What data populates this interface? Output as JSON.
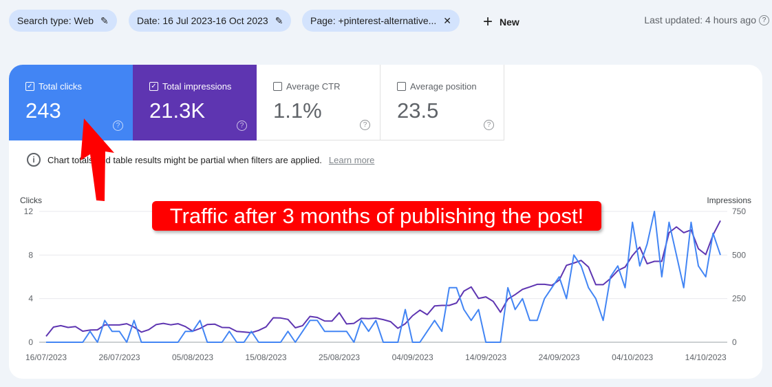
{
  "filters": [
    {
      "label": "Search type: Web",
      "icon": "pencil-icon"
    },
    {
      "label": "Date: 16 Jul 2023-16 Oct 2023",
      "icon": "pencil-icon"
    },
    {
      "label": "Page: +pinterest-alternative...",
      "icon": "close-icon"
    }
  ],
  "new_label": "New",
  "last_updated": "Last updated: 4 hours ago",
  "metrics": [
    {
      "label": "Total clicks",
      "value": "243",
      "checked": true,
      "color": "#4285f4"
    },
    {
      "label": "Total impressions",
      "value": "21.3K",
      "checked": true,
      "color": "#5e35b1"
    },
    {
      "label": "Average CTR",
      "value": "1.1%",
      "checked": false
    },
    {
      "label": "Average position",
      "value": "23.5",
      "checked": false
    }
  ],
  "info_text": "Chart totals and table results might be partial when filters are applied.",
  "learn_more": "Learn more",
  "annotation": "Traffic after 3 months of publishing the post!",
  "chart_data": {
    "type": "line",
    "x_start": "16/07/2023",
    "x_end": "16/10/2023",
    "x_tick_labels": [
      "16/07/2023",
      "26/07/2023",
      "05/08/2023",
      "15/08/2023",
      "25/08/2023",
      "04/09/2023",
      "14/09/2023",
      "24/09/2023",
      "04/10/2023",
      "14/10/2023"
    ],
    "ylabel_left": "Clicks",
    "ylabel_right": "Impressions",
    "ylim_left": [
      0,
      12
    ],
    "ylim_right": [
      0,
      750
    ],
    "yticks_left": [
      "0",
      "4",
      "8",
      "12"
    ],
    "yticks_right": [
      "0",
      "250",
      "500",
      "750"
    ],
    "grid": true,
    "series": [
      {
        "name": "Clicks",
        "axis": "left",
        "color": "#4285f4",
        "values": [
          0,
          0,
          0,
          0,
          0,
          0,
          1,
          0,
          2,
          1,
          1,
          0,
          2,
          0,
          0,
          0,
          0,
          0,
          0,
          1,
          1,
          2,
          0,
          0,
          0,
          1,
          0,
          0,
          1,
          0,
          0,
          0,
          0,
          1,
          0,
          1,
          2,
          2,
          1,
          1,
          1,
          1,
          0,
          2,
          1,
          2,
          0,
          0,
          0,
          3,
          0,
          0,
          1,
          2,
          1,
          5,
          5,
          3,
          2,
          3,
          0,
          0,
          0,
          5,
          3,
          4,
          2,
          2,
          4,
          5,
          6,
          4,
          8,
          7,
          5,
          4,
          2,
          6,
          7,
          5,
          11,
          7,
          9,
          12,
          6,
          11,
          8,
          5,
          11,
          7,
          6,
          10,
          8
        ]
      },
      {
        "name": "Impressions",
        "axis": "right",
        "color": "#5e35b1",
        "values": [
          34,
          87,
          95,
          85,
          90,
          63,
          70,
          71,
          99,
          99,
          99,
          106,
          87,
          58,
          72,
          101,
          108,
          100,
          106,
          90,
          63,
          79,
          102,
          104,
          85,
          84,
          62,
          59,
          55,
          68,
          88,
          140,
          139,
          131,
          83,
          95,
          148,
          142,
          122,
          121,
          169,
          105,
          108,
          137,
          135,
          138,
          130,
          118,
          80,
          106,
          152,
          184,
          158,
          208,
          211,
          211,
          225,
          293,
          317,
          251,
          260,
          234,
          172,
          247,
          273,
          303,
          317,
          332,
          332,
          326,
          356,
          441,
          454,
          469,
          431,
          330,
          330,
          365,
          411,
          431,
          497,
          545,
          450,
          464,
          464,
          628,
          661,
          628,
          644,
          536,
          503,
          615,
          697
        ]
      }
    ]
  }
}
